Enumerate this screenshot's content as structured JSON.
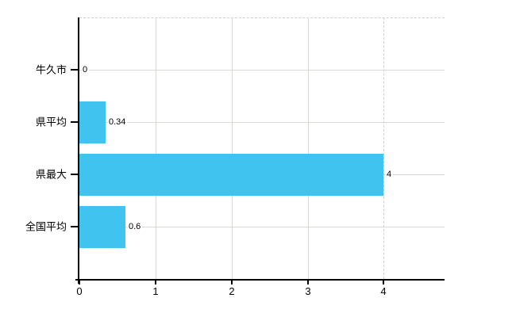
{
  "chart_data": {
    "type": "bar",
    "orientation": "horizontal",
    "title": "",
    "categories": [
      "牛久市",
      "県平均",
      "県最大",
      "全国平均"
    ],
    "values": [
      0,
      0.34,
      4,
      0.6
    ],
    "value_labels": [
      "0",
      "0.34",
      "4",
      "0.6"
    ],
    "xticks": [
      0,
      1,
      2,
      3,
      4
    ],
    "xtick_labels": [
      "0",
      "1",
      "2",
      "3",
      "4"
    ],
    "xlim": [
      0,
      4.8
    ],
    "grid": true,
    "legend": false,
    "bar_color": "#41c3f0",
    "gridline_color": "#d9dcd4",
    "dashed_line_color": "#ccd2cc",
    "axis_color": "#000000",
    "text_color": "#000000",
    "background_color": "#ffffff"
  }
}
